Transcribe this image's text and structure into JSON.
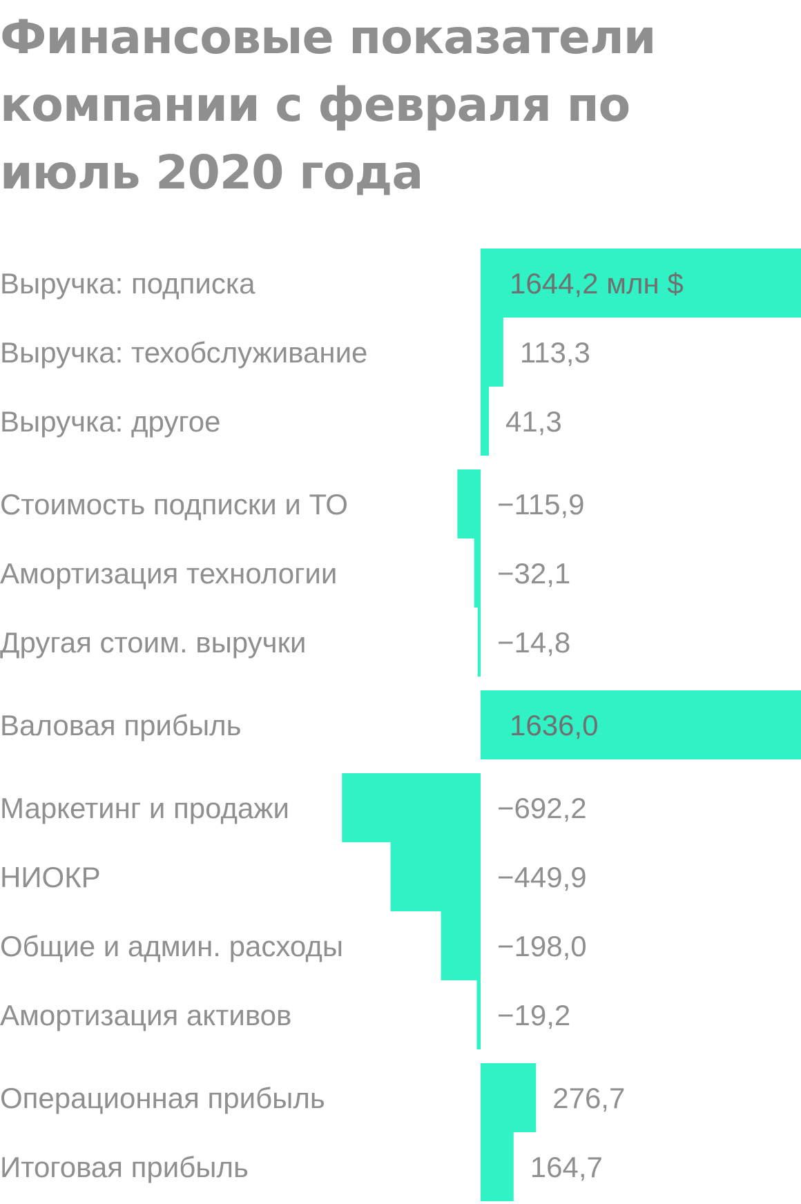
{
  "title": "Финансовые показатели компании с февраля по июль 2020 года",
  "accent_color": "#30f2c4",
  "text_color": "#8f8f8f",
  "chart_data": {
    "type": "bar",
    "orientation": "horizontal",
    "unit": "млн $",
    "groups": [
      {
        "rows": [
          {
            "label": "Выручка: подписка",
            "value": 1644.2,
            "display": "1644,2 млн $"
          },
          {
            "label": "Выручка: техобслуживание",
            "value": 113.3,
            "display": "113,3"
          },
          {
            "label": "Выручка: другое",
            "value": 41.3,
            "display": "41,3"
          }
        ]
      },
      {
        "rows": [
          {
            "label": "Стоимость подписки и ТО",
            "value": -115.9,
            "display": "−115,9"
          },
          {
            "label": "Амортизация технологии",
            "value": -32.1,
            "display": "−32,1"
          },
          {
            "label": "Другая стоим. выручки",
            "value": -14.8,
            "display": "−14,8"
          }
        ]
      },
      {
        "rows": [
          {
            "label": "Валовая прибыль",
            "value": 1636.0,
            "display": "1636,0"
          }
        ]
      },
      {
        "rows": [
          {
            "label": "Маркетинг и продажи",
            "value": -692.2,
            "display": "−692,2"
          },
          {
            "label": "НИОКР",
            "value": -449.9,
            "display": "−449,9"
          },
          {
            "label": "Общие и админ. расходы",
            "value": -198.0,
            "display": "−198,0"
          },
          {
            "label": "Амортизация активов",
            "value": -19.2,
            "display": "−19,2"
          }
        ]
      },
      {
        "rows": [
          {
            "label": "Операционная прибыль",
            "value": 276.7,
            "display": "276,7"
          },
          {
            "label": "Итоговая прибыль",
            "value": 164.7,
            "display": "164,7"
          }
        ]
      }
    ]
  }
}
